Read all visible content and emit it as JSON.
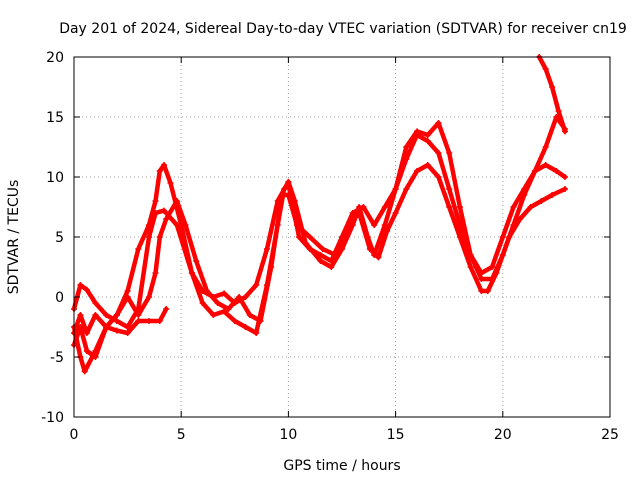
{
  "chart_data": {
    "type": "line",
    "title": "Day 201 of 2024, Sidereal Day-to-day VTEC variation (SDTVAR) for receiver cn19",
    "xlabel": "GPS time / hours",
    "ylabel": "SDTVAR / TECUs",
    "xlim": [
      0,
      25
    ],
    "ylim": [
      -10,
      20
    ],
    "x_ticks": [
      "0",
      "5",
      "10",
      "15",
      "20",
      "25"
    ],
    "y_ticks": [
      "-10",
      "-5",
      "0",
      "5",
      "10",
      "15",
      "20"
    ],
    "grid": true,
    "color": "#ff0000",
    "marker": "+",
    "series": [
      {
        "name": "track-1",
        "points": [
          [
            0,
            -1.0
          ],
          [
            0.3,
            1.0
          ],
          [
            0.6,
            0.6
          ],
          [
            1.0,
            -0.5
          ],
          [
            1.5,
            -1.5
          ],
          [
            2.0,
            -2.0
          ],
          [
            2.5,
            -2.5
          ],
          [
            3.0,
            -1.0
          ],
          [
            3.5,
            5.0
          ],
          [
            3.8,
            7.0
          ],
          [
            4.2,
            7.2
          ],
          [
            4.8,
            6.0
          ],
          [
            5.5,
            2.0
          ],
          [
            6.0,
            -0.5
          ],
          [
            6.5,
            -1.5
          ],
          [
            7.0,
            -1.2
          ],
          [
            7.5,
            -2.0
          ],
          [
            8.0,
            -2.5
          ],
          [
            8.5,
            -3.0
          ],
          [
            9.0,
            1.0
          ],
          [
            9.5,
            6.0
          ],
          [
            9.8,
            9.0
          ],
          [
            10.0,
            9.4
          ],
          [
            10.5,
            5.0
          ],
          [
            11.0,
            4.0
          ],
          [
            11.5,
            3.5
          ],
          [
            12.0,
            3.0
          ],
          [
            12.5,
            5.0
          ],
          [
            13.0,
            7.0
          ],
          [
            13.5,
            7.5
          ],
          [
            14.0,
            6.0
          ],
          [
            14.5,
            7.5
          ],
          [
            15.0,
            9.0
          ],
          [
            15.5,
            11.5
          ],
          [
            16.0,
            13.5
          ],
          [
            16.5,
            13.0
          ],
          [
            17.0,
            12.0
          ],
          [
            17.5,
            9.0
          ],
          [
            18.0,
            6.0
          ],
          [
            18.5,
            3.5
          ],
          [
            19.0,
            2.0
          ],
          [
            19.5,
            2.5
          ],
          [
            20.0,
            5.0
          ],
          [
            20.5,
            7.5
          ],
          [
            21.0,
            9.0
          ],
          [
            21.5,
            10.5
          ],
          [
            22.0,
            11.0
          ],
          [
            22.5,
            10.5
          ],
          [
            22.9,
            10.0
          ]
        ]
      },
      {
        "name": "track-2",
        "points": [
          [
            0,
            -2.5
          ],
          [
            0.3,
            -5.0
          ],
          [
            0.5,
            -6.2
          ],
          [
            1.0,
            -4.5
          ],
          [
            1.5,
            -2.5
          ],
          [
            2.0,
            -1.5
          ],
          [
            2.5,
            0.5
          ],
          [
            3.0,
            4.0
          ],
          [
            3.5,
            6.0
          ],
          [
            3.8,
            8.0
          ],
          [
            4.0,
            10.5
          ],
          [
            4.2,
            11.0
          ],
          [
            4.5,
            9.5
          ],
          [
            5.0,
            6.0
          ],
          [
            5.5,
            2.0
          ],
          [
            6.0,
            0.5
          ],
          [
            6.5,
            0.0
          ],
          [
            7.0,
            0.3
          ],
          [
            7.5,
            -0.5
          ],
          [
            8.0,
            0.0
          ],
          [
            8.5,
            1.0
          ],
          [
            9.0,
            4.0
          ],
          [
            9.5,
            8.0
          ],
          [
            10.0,
            9.6
          ],
          [
            10.3,
            8.0
          ],
          [
            10.8,
            4.5
          ],
          [
            11.5,
            3.0
          ],
          [
            12.0,
            2.5
          ],
          [
            12.5,
            4.0
          ],
          [
            13.0,
            6.0
          ],
          [
            13.3,
            7.5
          ],
          [
            13.7,
            5.0
          ],
          [
            14.0,
            3.5
          ],
          [
            14.5,
            6.0
          ],
          [
            15.0,
            9.0
          ],
          [
            15.5,
            12.5
          ],
          [
            16.0,
            13.8
          ],
          [
            16.5,
            13.5
          ],
          [
            17.0,
            14.5
          ],
          [
            17.5,
            12.0
          ],
          [
            18.0,
            7.5
          ],
          [
            18.5,
            3.5
          ],
          [
            19.0,
            1.5
          ],
          [
            19.5,
            1.5
          ],
          [
            20.0,
            3.5
          ],
          [
            20.5,
            6.0
          ],
          [
            21.0,
            8.5
          ],
          [
            21.5,
            10.5
          ],
          [
            22.0,
            12.5
          ],
          [
            22.5,
            15.0
          ],
          [
            22.9,
            14.0
          ]
        ]
      },
      {
        "name": "track-3",
        "points": [
          [
            0,
            -3.0
          ],
          [
            0.3,
            -1.5
          ],
          [
            0.6,
            -3.0
          ],
          [
            1.0,
            -1.5
          ],
          [
            1.5,
            -2.5
          ],
          [
            2.0,
            -2.8
          ],
          [
            2.5,
            -3.0
          ],
          [
            3.0,
            -2.0
          ],
          [
            3.5,
            -2.0
          ],
          [
            4.0,
            -2.0
          ],
          [
            4.3,
            -1.0
          ]
        ]
      },
      {
        "name": "track-4",
        "points": [
          [
            0,
            -4.0
          ],
          [
            0.3,
            -2.5
          ],
          [
            0.6,
            -4.5
          ],
          [
            1.0,
            -5.0
          ],
          [
            1.5,
            -2.5
          ],
          [
            2.0,
            -1.5
          ],
          [
            2.5,
            0.0
          ],
          [
            3.0,
            -1.5
          ],
          [
            3.5,
            0.0
          ],
          [
            3.8,
            2.0
          ],
          [
            4.0,
            5.0
          ],
          [
            4.3,
            6.5
          ],
          [
            4.8,
            8.0
          ],
          [
            5.2,
            6.0
          ],
          [
            5.7,
            3.0
          ],
          [
            6.2,
            0.5
          ],
          [
            6.7,
            -0.5
          ],
          [
            7.2,
            -1.0
          ],
          [
            7.7,
            0.0
          ],
          [
            8.2,
            -1.5
          ],
          [
            8.7,
            -2.0
          ],
          [
            9.2,
            2.5
          ],
          [
            9.7,
            8.5
          ],
          [
            10.0,
            8.5
          ],
          [
            10.4,
            6.0
          ],
          [
            11.0,
            5.0
          ],
          [
            11.6,
            4.0
          ],
          [
            12.2,
            3.5
          ],
          [
            12.8,
            6.0
          ],
          [
            13.3,
            7.0
          ],
          [
            13.8,
            4.0
          ],
          [
            14.2,
            3.3
          ],
          [
            14.6,
            5.5
          ],
          [
            15.0,
            7.0
          ],
          [
            15.5,
            9.0
          ],
          [
            16.0,
            10.5
          ],
          [
            16.5,
            11.0
          ],
          [
            17.0,
            10.0
          ],
          [
            17.5,
            7.5
          ],
          [
            18.0,
            5.0
          ],
          [
            18.5,
            2.5
          ],
          [
            19.0,
            0.5
          ],
          [
            19.3,
            0.5
          ],
          [
            19.7,
            2.0
          ],
          [
            20.3,
            5.0
          ],
          [
            20.8,
            6.5
          ],
          [
            21.3,
            7.5
          ],
          [
            21.8,
            8.0
          ],
          [
            22.3,
            8.5
          ],
          [
            22.9,
            9.0
          ]
        ]
      },
      {
        "name": "track-5",
        "points": [
          [
            21.7,
            20.0
          ],
          [
            22.0,
            19.0
          ],
          [
            22.3,
            17.5
          ],
          [
            22.6,
            15.5
          ],
          [
            22.9,
            13.8
          ]
        ]
      }
    ]
  }
}
